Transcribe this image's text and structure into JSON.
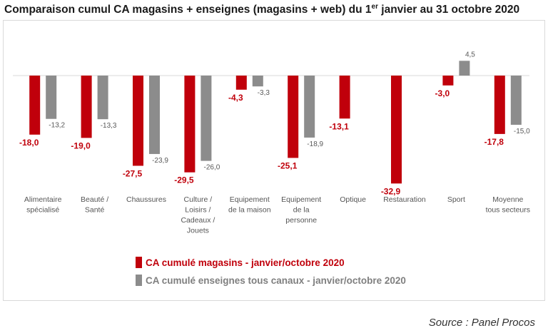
{
  "title": {
    "main": "Comparaison cumul CA magasins + enseignes (magasins + web) du 1",
    "sup": "er",
    "rest": " janvier au 31 octobre 2020"
  },
  "colors": {
    "stores": "#c0000b",
    "allchannels": "#8c8c8c"
  },
  "chart_data": {
    "type": "bar",
    "categories": [
      [
        "Alimentaire",
        "spécialisé"
      ],
      [
        "Beauté /",
        "Santé"
      ],
      [
        "Chaussures"
      ],
      [
        "Culture /",
        "Loisirs /",
        "Cadeaux /",
        "Jouets"
      ],
      [
        "Equipement",
        "de la maison"
      ],
      [
        "Equipement",
        "de la",
        "personne"
      ],
      [
        "Optique"
      ],
      [
        "Restauration"
      ],
      [
        "Sport"
      ],
      [
        "Moyenne",
        "tous secteurs"
      ]
    ],
    "series": [
      {
        "name": "CA cumulé magasins - janvier/octobre 2020",
        "values": [
          -18.0,
          -19.0,
          -27.5,
          -29.5,
          -4.3,
          -25.1,
          -13.1,
          -32.9,
          -3.0,
          -17.8
        ],
        "labels": [
          "-18,0",
          "-19,0",
          "-27,5",
          "-29,5",
          "-4,3",
          "-25,1",
          "-13,1",
          "-32,9",
          "-3,0",
          "-17,8"
        ]
      },
      {
        "name": "CA cumulé enseignes tous canaux - janvier/octobre 2020",
        "values": [
          -13.2,
          -13.3,
          -23.9,
          -26.0,
          -3.3,
          -18.9,
          null,
          null,
          4.5,
          -15.0
        ],
        "labels": [
          "-13,2",
          "-13,3",
          "-23,9",
          "-26,0",
          "-3,3",
          "-18,9",
          "",
          "",
          "4,5",
          "-15,0"
        ]
      }
    ],
    "legend_position": "bottom-left",
    "grid": false
  },
  "source": "Source : Panel Procos"
}
